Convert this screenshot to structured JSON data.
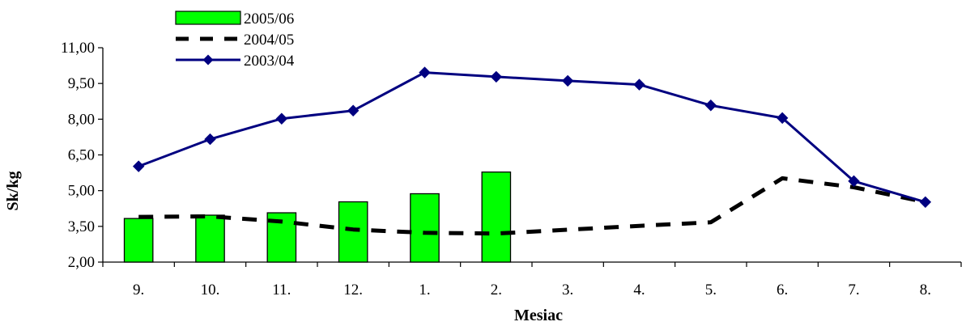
{
  "chart_data": {
    "type": "bar",
    "categories": [
      "9.",
      "10.",
      "11.",
      "12.",
      "1.",
      "2.",
      "3.",
      "4.",
      "5.",
      "6.",
      "7.",
      "8."
    ],
    "series": [
      {
        "name": "2005/06",
        "type": "bar",
        "color": "#00ff00",
        "values": [
          3.83,
          3.97,
          4.07,
          4.53,
          4.87,
          5.78,
          null,
          null,
          null,
          null,
          null,
          null
        ]
      },
      {
        "name": "2004/05",
        "type": "line",
        "style": "dashed",
        "color": "#000000",
        "values": [
          3.9,
          3.92,
          3.7,
          3.37,
          3.23,
          3.2,
          3.36,
          3.52,
          3.67,
          5.52,
          5.14,
          4.52
        ]
      },
      {
        "name": "2003/04",
        "type": "line",
        "marker": "diamond",
        "color": "#000080",
        "values": [
          6.02,
          7.16,
          8.02,
          8.36,
          9.96,
          9.78,
          9.61,
          9.45,
          8.58,
          8.05,
          5.4,
          4.52
        ]
      }
    ],
    "xlabel": "Mesiac",
    "ylabel": "Sk/kg",
    "ylim": [
      2.0,
      11.0
    ],
    "yticks": [
      "2,00",
      "3,50",
      "5,00",
      "6,50",
      "8,00",
      "9,50",
      "11,00"
    ],
    "grid": false,
    "legend_position": "top-left"
  }
}
